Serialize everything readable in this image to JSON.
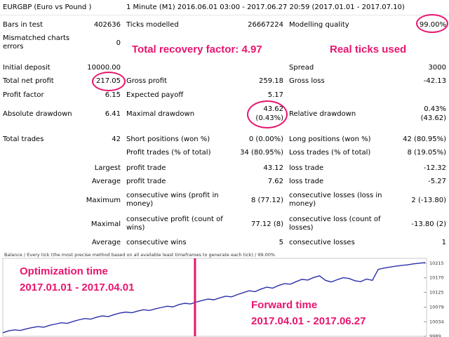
{
  "report": {
    "symbol": "EURGBP (Euro vs Pound )",
    "period": "1 Minute (M1) 2016.06.01 03:00 - 2017.06.27 20:59 (2017.01.01 - 2017.07.10)",
    "bars_label": "Bars in test",
    "bars_value": "402636",
    "ticks_label": "Ticks modelled",
    "ticks_value": "26667224",
    "quality_label": "Modelling quality",
    "quality_value": "99.00%",
    "mismatch_label": "Mismatched charts errors",
    "mismatch_value": "0",
    "deposit_label": "Initial deposit",
    "deposit_value": "10000.00",
    "spread_label": "Spread",
    "spread_value": "3000",
    "net_label": "Total net profit",
    "net_value": "217.05",
    "gross_profit_label": "Gross profit",
    "gross_profit_value": "259.18",
    "gross_loss_label": "Gross loss",
    "gross_loss_value": "-42.13",
    "pf_label": "Profit factor",
    "pf_value": "6.15",
    "payoff_label": "Expected payoff",
    "payoff_value": "5.17",
    "abs_dd_label": "Absolute drawdown",
    "abs_dd_value": "6.41",
    "max_dd_label": "Maximal drawdown",
    "max_dd_value1": "43.62",
    "max_dd_value2": "(0.43%)",
    "rel_dd_label": "Relative drawdown",
    "rel_dd_value1": "0.43%",
    "rel_dd_value2": "(43.62)",
    "trades_label": "Total trades",
    "trades_value": "42",
    "short_label": "Short positions (won %)",
    "short_value": "0 (0.00%)",
    "long_label": "Long positions (won %)",
    "long_value": "42 (80.95%)",
    "ptrades_label": "Profit trades (% of total)",
    "ptrades_value": "34 (80.95%)",
    "ltrades_label": "Loss trades (% of total)",
    "ltrades_value": "8 (19.05%)",
    "largest_label": "Largest",
    "largest_pt_label": "profit trade",
    "largest_pt_value": "43.12",
    "largest_lt_label": "loss trade",
    "largest_lt_value": "-12.32",
    "average_label": "Average",
    "average_pt_label": "profit trade",
    "average_pt_value": "7.62",
    "average_lt_label": "loss trade",
    "average_lt_value": "-5.27",
    "maximum_label": "Maximum",
    "max_cw_label": "consecutive wins (profit in money)",
    "max_cw_value": "8 (77.12)",
    "max_cl_label": "consecutive losses (loss in money)",
    "max_cl_value": "2 (-13.80)",
    "maximal_label": "Maximal",
    "max_cp_label": "consecutive profit (count of wins)",
    "max_cp_value": "77.12 (8)",
    "max_closs_label": "consecutive loss (count of losses)",
    "max_closs_value": "-13.80 (2)",
    "avg2_label": "Average",
    "avg_cw_label": "consecutive wins",
    "avg_cw_value": "5",
    "avg_cl_label": "consecutive losses",
    "avg_cl_value": "1"
  },
  "annotations": {
    "recovery": "Total recovery factor: 4.97",
    "real_ticks": "Real ticks used",
    "opt_title": "Optimization time",
    "opt_range": "2017.01.01 - 2017.04.01",
    "fwd_title": "Forward time",
    "fwd_range": "2017.04.01 - 2017.06.27",
    "accent_color": "#e8146e"
  },
  "chart_data": {
    "type": "line",
    "title": "Balance / Every tick (the most precise method based on all available least timeframes to generate each tick) / 99.00%",
    "yticks": [
      10215,
      10170,
      10125,
      10079,
      10034,
      9989
    ],
    "ylim": [
      9989,
      10230
    ],
    "line_color": "#2a2fa8",
    "divider_color": "#e8146e",
    "divider_at_fraction": 0.455,
    "values": [
      10000,
      10006,
      10009,
      10007,
      10012,
      10016,
      10019,
      10017,
      10023,
      10027,
      10031,
      10029,
      10035,
      10040,
      10044,
      10042,
      10048,
      10052,
      10050,
      10056,
      10061,
      10064,
      10062,
      10067,
      10071,
      10069,
      10074,
      10078,
      10082,
      10080,
      10087,
      10091,
      10089,
      10095,
      10100,
      10104,
      10102,
      10108,
      10113,
      10111,
      10118,
      10124,
      10130,
      10127,
      10135,
      10141,
      10138,
      10146,
      10152,
      10150,
      10158,
      10165,
      10163,
      10171,
      10176,
      10162,
      10157,
      10164,
      10170,
      10168,
      10161,
      10158,
      10166,
      10162,
      10196,
      10200,
      10203,
      10206,
      10208,
      10210,
      10213,
      10215,
      10217
    ]
  }
}
